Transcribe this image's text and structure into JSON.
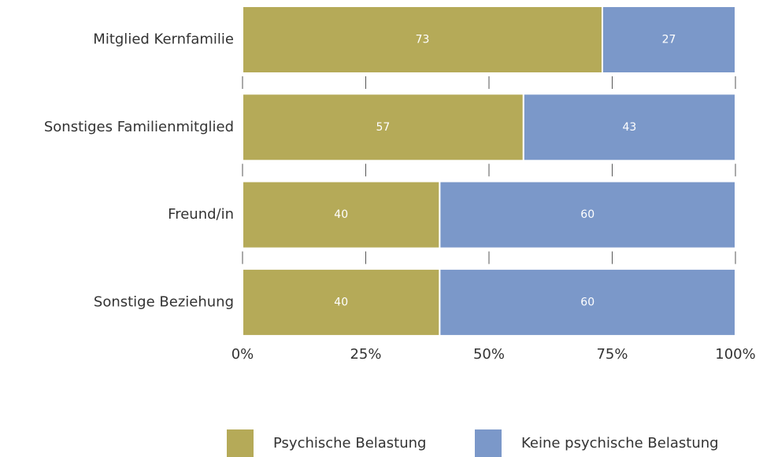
{
  "chart_data": {
    "type": "stacked_barh",
    "categories": [
      "Mitglied Kernfamilie",
      "Sonstiges Familienmitglied",
      "Freund/in",
      "Sonstige Beziehung"
    ],
    "series": [
      {
        "name": "Psychische Belastung",
        "color": "#b5aa58",
        "values": [
          73,
          57,
          40,
          40
        ]
      },
      {
        "name": "Keine psychische Belastung",
        "color": "#7b98c9",
        "values": [
          27,
          43,
          60,
          60
        ]
      }
    ],
    "xlim": [
      0,
      100
    ],
    "xticks": [
      {
        "value": 0,
        "label": "0%"
      },
      {
        "value": 25,
        "label": "25%"
      },
      {
        "value": 50,
        "label": "50%"
      },
      {
        "value": 75,
        "label": "75%"
      },
      {
        "value": 100,
        "label": "100%"
      }
    ],
    "legend": "bottom"
  }
}
